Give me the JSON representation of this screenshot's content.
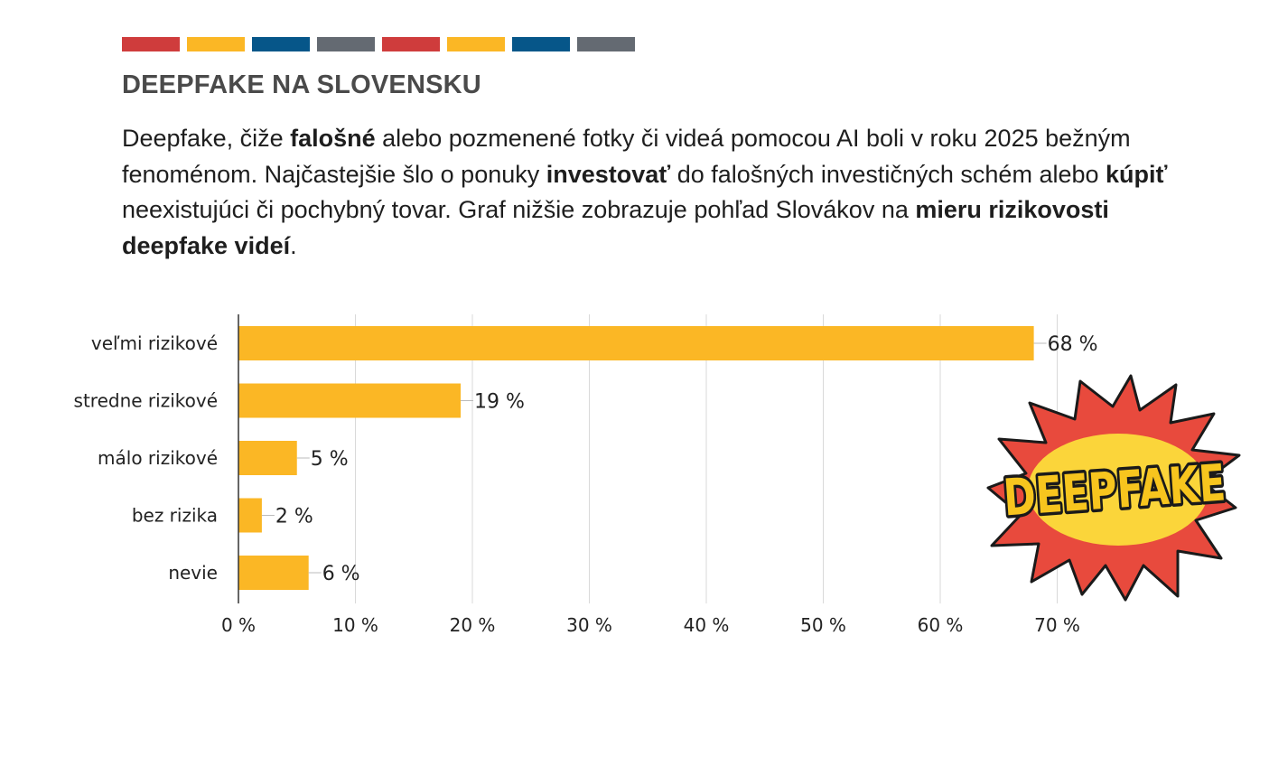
{
  "header": {
    "stripe_colors": [
      "#cf3c3c",
      "#fbb725",
      "#065689",
      "#646a72",
      "#cf3c3c",
      "#fbb725",
      "#065689",
      "#646a72"
    ],
    "title": "DEEPFAKE NA SLOVENSKU"
  },
  "intro": {
    "p1": "Deepfake, čiže ",
    "b1": "falošné",
    "p2": " alebo pozmenené fotky či videá pomocou AI boli v roku 2025 bežným fenoménom. Najčastejšie šlo o ponuky ",
    "b2": "investovať",
    "p3": " do falošných investičných schém alebo ",
    "b3": "kúpiť",
    "p4": " neexistujúci či pochybný tovar. Graf nižšie zobrazuje pohľad Slovákov na ",
    "b4": "mieru rizikovosti deepfake videí",
    "p5": "."
  },
  "badge": {
    "text": "DEEPFAKE",
    "icon": "comic-burst-icon",
    "colors": {
      "burst": "#e84a3d",
      "oval": "#fbd53a",
      "text_fill": "#f7c51e",
      "outline": "#1a1a1a"
    }
  },
  "chart_data": {
    "type": "bar",
    "orientation": "horizontal",
    "categories": [
      "veľmi rizikové",
      "stredne rizikové",
      "málo rizikové",
      "bez rizika",
      "nevie"
    ],
    "values": [
      68,
      19,
      5,
      2,
      6
    ],
    "value_labels": [
      "68 %",
      "19 %",
      "5 %",
      "2 %",
      "6 %"
    ],
    "xticks": [
      0,
      10,
      20,
      30,
      40,
      50,
      60,
      70
    ],
    "xtick_labels": [
      "0 %",
      "10 %",
      "20 %",
      "30 %",
      "40 %",
      "50 %",
      "60 %",
      "70 %"
    ],
    "xlim": [
      0,
      72
    ],
    "grid": true,
    "bar_color": "#fbb725",
    "gridline_color": "#d9d9d9",
    "axis_color": "#333333"
  }
}
